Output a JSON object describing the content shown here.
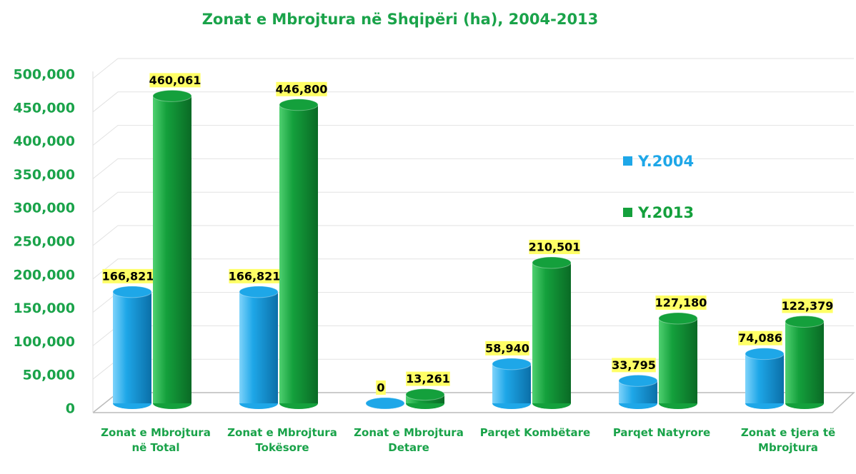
{
  "chart_data": {
    "type": "bar3d",
    "title": "Zonat e Mbrojtura në Shqipëri (ha), 2004-2013",
    "categories": [
      "Zonat e Mbrojtura në Total",
      "Zonat e Mbrojtura Tokësore",
      "Zonat e Mbrojtura Detare",
      "Parqet Kombëtare",
      "Parqet Natyrore",
      "Zonat e tjera të Mbrojtura"
    ],
    "series": [
      {
        "name": "Y.2004",
        "color": "#1ea7e8",
        "values": [
          166821,
          166821,
          0,
          58940,
          33795,
          74086
        ],
        "value_labels": [
          "166,821",
          "166,821",
          "0",
          "58,940",
          "33,795",
          "74,086"
        ]
      },
      {
        "name": "Y.2013",
        "color": "#14a03c",
        "values": [
          460061,
          446800,
          13261,
          210501,
          127180,
          122379
        ],
        "value_labels": [
          "460,061",
          "446,800",
          "13,261",
          "210,501",
          "127,180",
          "122,379"
        ]
      }
    ],
    "ylim": [
      0,
      500000
    ],
    "yticks": [
      0,
      {
        "value": 50000,
        "label": "50,000"
      },
      {
        "value": 100000,
        "label": "100,000"
      },
      {
        "value": 150000,
        "label": "150,000"
      },
      {
        "value": 200000,
        "label": "200,000"
      },
      {
        "value": 250000,
        "label": "250,000"
      },
      {
        "value": 300000,
        "label": "300,000"
      },
      {
        "value": 350000,
        "label": "350,000"
      },
      {
        "value": 400000,
        "label": "400,000"
      },
      {
        "value": 450000,
        "label": "450,000"
      },
      {
        "value": 500000,
        "label": "500,000"
      }
    ],
    "grid": true,
    "legend": "right"
  }
}
